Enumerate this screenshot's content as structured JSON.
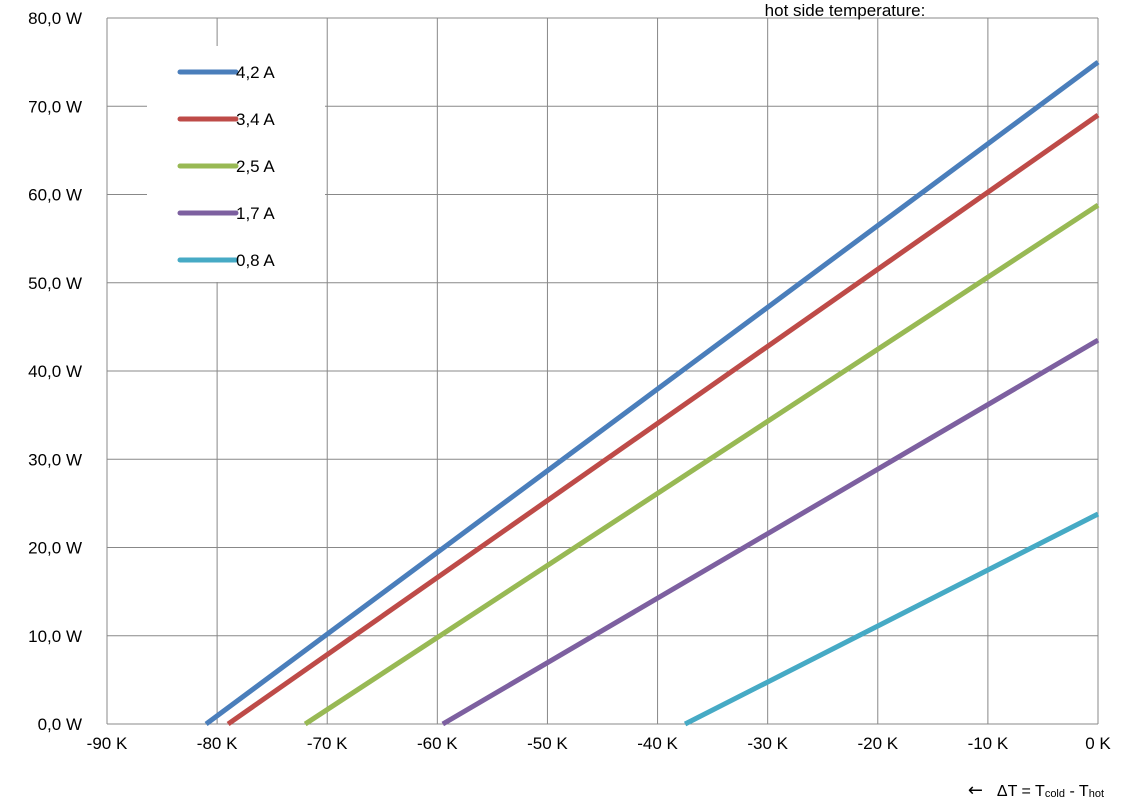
{
  "chart_data": {
    "type": "line",
    "xlim": [
      -90,
      0
    ],
    "ylim": [
      0,
      80
    ],
    "x_ticks": [
      -90,
      -80,
      -70,
      -60,
      -50,
      -40,
      -30,
      -20,
      -10,
      0
    ],
    "y_ticks": [
      0,
      10,
      20,
      30,
      40,
      50,
      60,
      70,
      80
    ],
    "x_tick_labels": [
      "-90 K",
      "-80 K",
      "-70 K",
      "-60 K",
      "-50 K",
      "-40 K",
      "-30 K",
      "-20 K",
      "-10 K",
      "0 K"
    ],
    "y_tick_labels": [
      "0,0 W",
      "10,0 W",
      "20,0 W",
      "30,0 W",
      "40,0 W",
      "50,0 W",
      "60,0 W",
      "70,0 W",
      "80,0 W"
    ],
    "grid": true,
    "legend_position": "top-left",
    "series": [
      {
        "name": "4,2 A",
        "color": "#4A7EBB",
        "x": [
          -81,
          0
        ],
        "y": [
          0,
          75
        ]
      },
      {
        "name": "3,4 A",
        "color": "#BE4B48",
        "x": [
          -79,
          0
        ],
        "y": [
          0,
          69
        ]
      },
      {
        "name": "2,5 A",
        "color": "#98B954",
        "x": [
          -72,
          0
        ],
        "y": [
          0,
          58.8
        ]
      },
      {
        "name": "1,7 A",
        "color": "#7D60A0",
        "x": [
          -59.5,
          0
        ],
        "y": [
          0,
          43.5
        ]
      },
      {
        "name": "0,8 A",
        "color": "#46AAC5",
        "x": [
          -37.5,
          0
        ],
        "y": [
          0,
          23.8
        ]
      }
    ],
    "annotation_top": "hot side temperature:",
    "x_axis_note": {
      "arrow": "←",
      "text": "ΔT = T",
      "sub_cold": "cold",
      "separator": " - T",
      "sub_hot": "hot"
    }
  }
}
